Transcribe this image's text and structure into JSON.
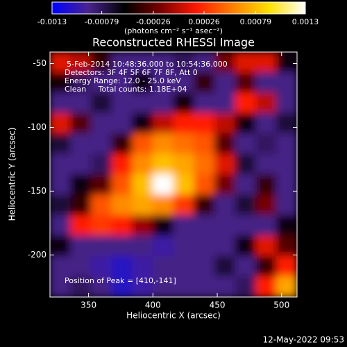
{
  "chart_data": {
    "type": "heatmap",
    "title": "Reconstructed RHESSI Image",
    "xlabel": "Heliocentric X (arcsec)",
    "ylabel": "Heliocentric Y (arcsec)",
    "colorbar_label": "(photons cm⁻² s⁻¹ asec⁻²)",
    "annotations": [
      "5-Feb-2014 10:48:36.000 to 10:54:36.000",
      "Detectors: 3F 4F 5F 6F 7F 8F, Att 0",
      "Energy Range: 12.0 - 25.0 keV",
      "Clean     Total counts: 1.18E+04"
    ],
    "peak_label": "Position of Peak = [410,-141]",
    "footer": "12-May-2022 09:53",
    "colormap": [
      "#0000ff",
      "#4a2490",
      "#000000",
      "#7a0000",
      "#ff1a00",
      "#ff8000",
      "#ffe000",
      "#ffffff"
    ],
    "zlim": [
      -0.0013,
      0.0013
    ],
    "zticks": [
      -0.0013,
      -0.00079,
      -0.00026,
      0.00026,
      0.00079,
      0.0013
    ],
    "xlim": [
      320,
      512
    ],
    "xticks": [
      350,
      400,
      450,
      500
    ],
    "ylim": [
      -233,
      -41
    ],
    "yticks": [
      -50,
      -100,
      -150,
      -200
    ],
    "x": [
      328,
      344,
      360,
      376,
      392,
      408,
      424,
      440,
      456,
      472,
      488,
      504
    ],
    "y": [
      -49,
      -65,
      -81,
      -97,
      -113,
      -129,
      -145,
      -161,
      -177,
      -193,
      -209,
      -225
    ],
    "z": [
      [
        0.0001,
        0,
        -0.0004,
        -0.0009,
        -0.0009,
        -0.0009,
        -0.0008,
        -0.0009,
        -0.0002,
        0.0001,
        0.0001,
        -0.0006
      ],
      [
        -0.0005,
        -0.0008,
        -0.0009,
        -0.0009,
        -0.0006,
        -0.0009,
        -0.0009,
        -0.0004,
        -0.0009,
        -0.0003,
        -0.0009,
        -0.0009
      ],
      [
        -0.0009,
        -0.0009,
        -0.0007,
        -0.0009,
        -0.0009,
        -0.0009,
        -0.0005,
        -0.0009,
        -0.0009,
        0.0002,
        0,
        -0.0009
      ],
      [
        0.0001,
        -0.0003,
        -0.0009,
        -0.0009,
        -0.0006,
        0,
        0.0002,
        0.0002,
        0,
        -0.0006,
        -0.0009,
        -0.0007
      ],
      [
        -0.0007,
        -0.0009,
        -0.0009,
        -0.0004,
        0.0004,
        0.0006,
        0.0005,
        0.0004,
        -0.0003,
        -0.0009,
        -0.0008,
        -0.0009
      ],
      [
        -0.0009,
        -0.0009,
        -0.0008,
        0.0002,
        0.0006,
        0.0008,
        0.0007,
        0.0005,
        0.0001,
        -0.0007,
        -0.0009,
        -0.0009
      ],
      [
        -0.0009,
        -0.0006,
        -0.0003,
        0.0004,
        0.0008,
        0.0013,
        0.0008,
        0.0004,
        -0.0002,
        -0.0009,
        -0.0004,
        -0.0009
      ],
      [
        -0.0007,
        -0.0004,
        0.0004,
        0.0006,
        0.0007,
        0.0006,
        0.0003,
        -0.0004,
        -0.0009,
        -0.0007,
        -0.0002,
        -0.0009
      ],
      [
        -0.0009,
        0.0002,
        0.0003,
        0.0002,
        -0.0001,
        -0.0006,
        -0.0009,
        -0.0009,
        -0.0009,
        -0.0009,
        -0.0009,
        -0.0006
      ],
      [
        -0.0006,
        -0.0009,
        -0.0009,
        -0.0009,
        -0.0009,
        -0.001,
        -0.0009,
        -0.0009,
        -0.0009,
        -0.0006,
        0.0001,
        -0.0003
      ],
      [
        -0.0009,
        -0.0009,
        -0.001,
        -0.0011,
        -0.001,
        -0.0009,
        -0.0009,
        -0.0009,
        -0.0007,
        -0.0009,
        -0.0004,
        0.0002
      ],
      [
        -0.0009,
        -0.0008,
        -0.0009,
        -0.0011,
        -0.001,
        -0.0009,
        -0.0009,
        -0.0009,
        -0.0009,
        -0.0008,
        0.0002,
        0.0007
      ]
    ]
  }
}
